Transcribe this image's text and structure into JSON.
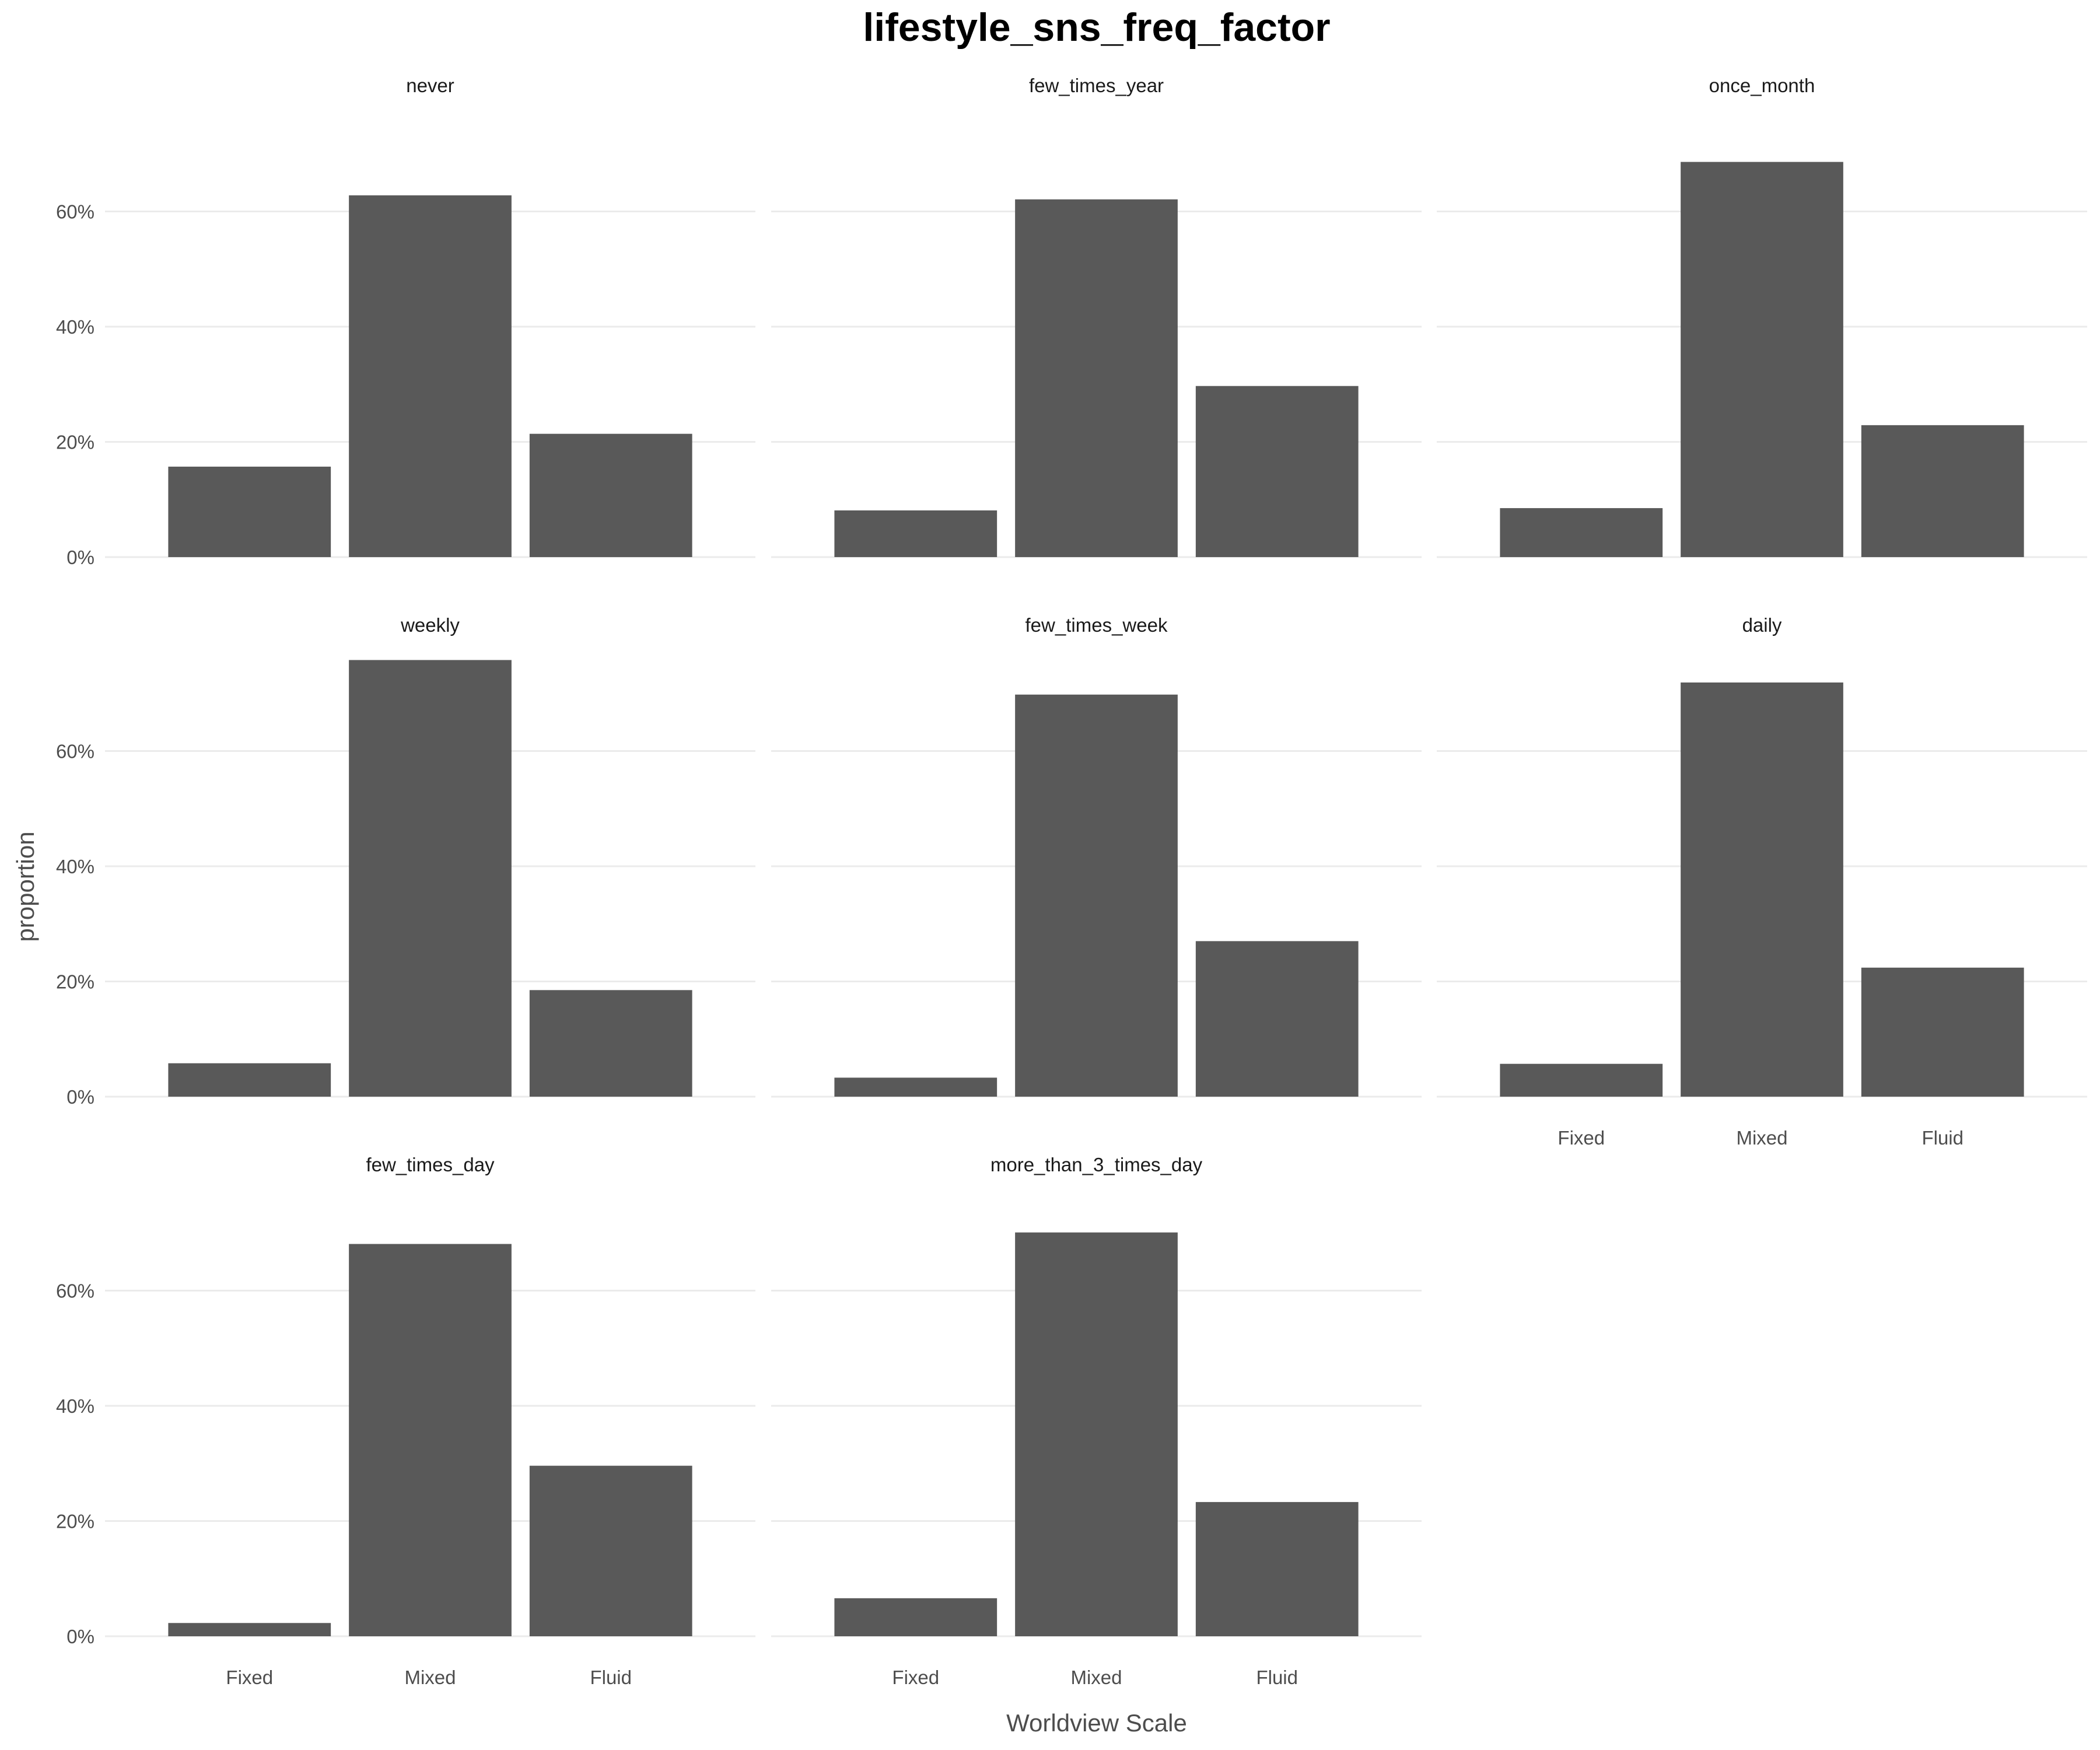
{
  "chart_data": {
    "type": "bar",
    "title": "lifestyle_sns_freq_factor",
    "xlabel": "Worldview Scale",
    "ylabel": "proportion",
    "categories": [
      "Fixed",
      "Mixed",
      "Fluid"
    ],
    "ylim": [
      0,
      0.8
    ],
    "yticks": [
      0,
      0.2,
      0.4,
      0.6
    ],
    "ytick_labels": [
      "0%",
      "20%",
      "40%",
      "60%"
    ],
    "grid": true,
    "legend": "none",
    "bar_color": "#595959",
    "facets": [
      {
        "name": "never",
        "values": [
          0.157,
          0.628,
          0.214
        ]
      },
      {
        "name": "few_times_year",
        "values": [
          0.081,
          0.621,
          0.297
        ]
      },
      {
        "name": "once_month",
        "values": [
          0.085,
          0.686,
          0.229
        ]
      },
      {
        "name": "weekly",
        "values": [
          0.058,
          0.758,
          0.185
        ]
      },
      {
        "name": "few_times_week",
        "values": [
          0.033,
          0.698,
          0.27
        ]
      },
      {
        "name": "daily",
        "values": [
          0.057,
          0.719,
          0.224
        ]
      },
      {
        "name": "few_times_day",
        "values": [
          0.023,
          0.681,
          0.296
        ]
      },
      {
        "name": "more_than_3_times_day",
        "values": [
          0.066,
          0.701,
          0.233
        ]
      }
    ]
  }
}
